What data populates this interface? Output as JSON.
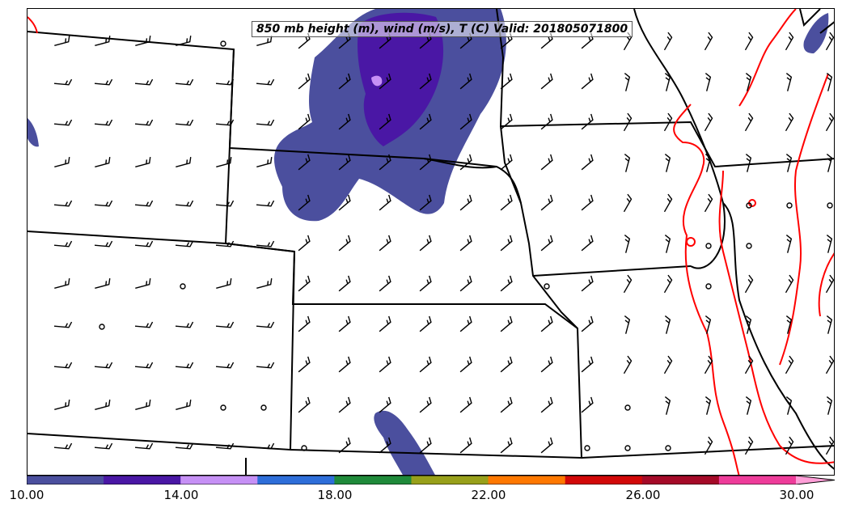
{
  "title": "850 mb height (m), wind (m/s), T (C) Valid: 201805071800",
  "colorbar": {
    "labels": [
      "10.00",
      "14.00",
      "18.00",
      "22.00",
      "26.00",
      "30.00"
    ],
    "colors": [
      "#4b4f9e",
      "#4a17a5",
      "#c690f5",
      "#2e6ed9",
      "#1f8a3a",
      "#98a01a",
      "#ff7800",
      "#d20808",
      "#a50a28",
      "#ee3c9a",
      "#ff9fd8"
    ]
  },
  "colors": {
    "shading_fill": "#4b4f9e",
    "shading_dark": "#4a17a5",
    "shading_light": "#c690f5",
    "temperature_contour": "#ff0000",
    "boundaries": "#000000"
  }
}
